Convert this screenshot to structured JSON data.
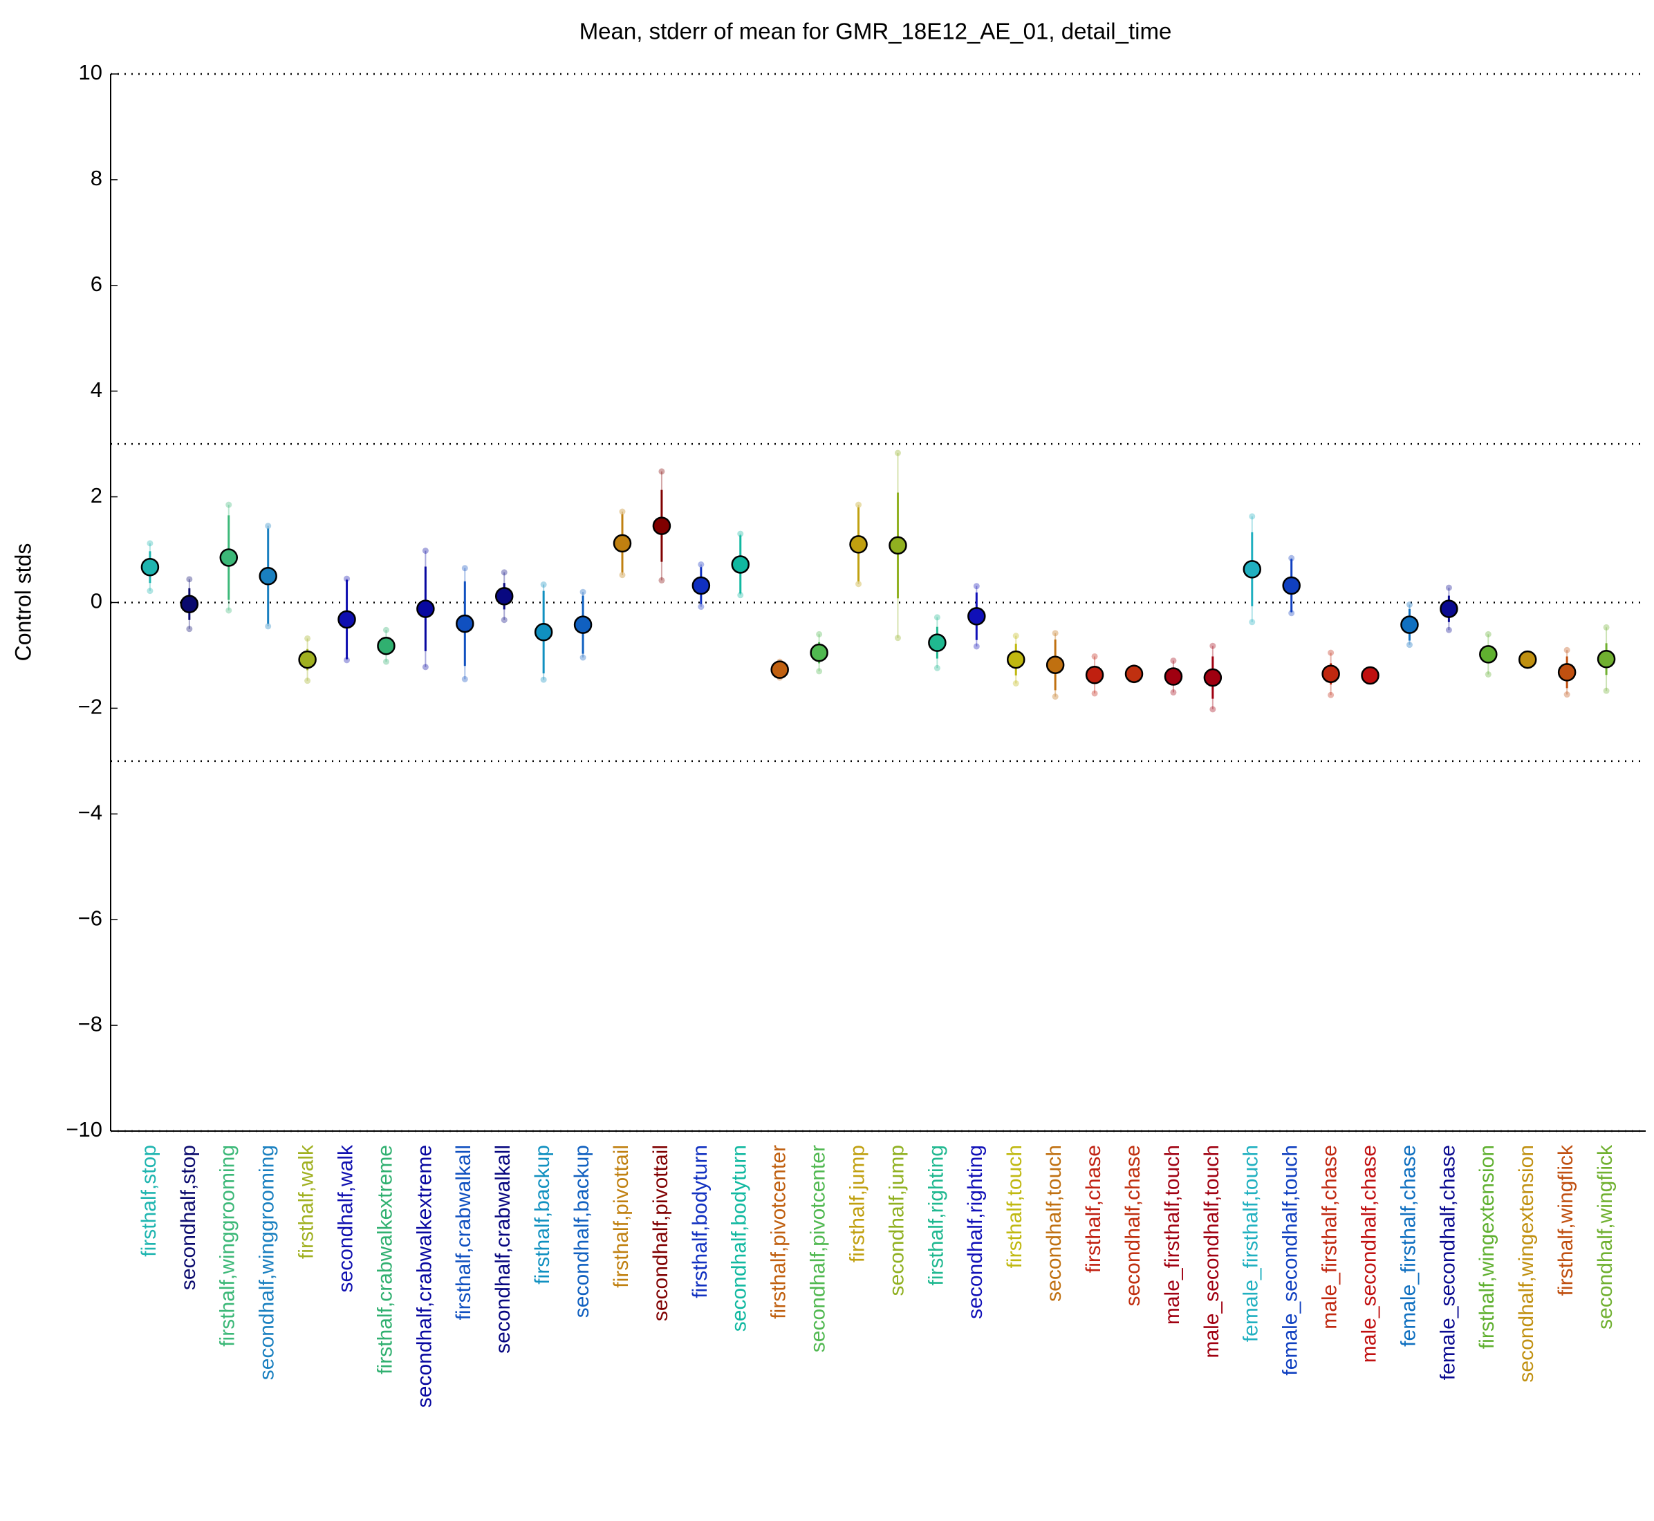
{
  "chart_data": {
    "type": "errorbar",
    "title": "Mean, stderr of mean for GMR_18E12_AE_01, detail_time",
    "y_label": "Control stds",
    "categories": [
      "firsthalf,stop",
      "secondhalf,stop",
      "firsthalf,winggrooming",
      "secondhalf,winggrooming",
      "firsthalf,walk",
      "secondhalf,walk",
      "firsthalf,crabwalkextreme",
      "secondhalf,crabwalkextreme",
      "firsthalf,crabwalkall",
      "secondhalf,crabwalkall",
      "firsthalf,backup",
      "secondhalf,backup",
      "firsthalf,pivottail",
      "secondhalf,pivottail",
      "firsthalf,bodyturn",
      "secondhalf,bodyturn",
      "firsthalf,pivotcenter",
      "secondhalf,pivotcenter",
      "firsthalf,jump",
      "secondhalf,jump",
      "firsthalf,righting",
      "secondhalf,righting",
      "firsthalf,touch",
      "secondhalf,touch",
      "firsthalf,chase",
      "secondhalf,chase",
      "male_firsthalf,touch",
      "male_secondhalf,touch",
      "female_firsthalf,touch",
      "female_secondhalf,touch",
      "male_firsthalf,chase",
      "male_secondhalf,chase",
      "female_firsthalf,chase",
      "female_secondhalf,chase",
      "firsthalf,wingextension",
      "secondhalf,wingextension",
      "firsthalf,wingflick",
      "secondhalf,wingflick"
    ],
    "values": [
      0.67,
      -0.03,
      0.85,
      0.5,
      -1.08,
      -0.32,
      -0.82,
      -0.12,
      -0.4,
      0.12,
      -0.56,
      -0.42,
      1.12,
      1.45,
      0.32,
      0.72,
      -1.27,
      -0.95,
      1.1,
      1.08,
      -0.76,
      -0.26,
      -1.08,
      -1.18,
      -1.37,
      -1.35,
      -1.4,
      -1.42,
      0.63,
      0.32,
      -1.35,
      -1.38,
      -0.42,
      -0.12,
      -0.98,
      -1.08,
      -1.32,
      -1.07
    ],
    "errors": [
      0.3,
      0.3,
      0.8,
      0.9,
      0.2,
      0.75,
      0.15,
      0.8,
      0.8,
      0.25,
      0.78,
      0.55,
      0.55,
      0.68,
      0.35,
      0.55,
      0.08,
      0.2,
      0.7,
      1.0,
      0.3,
      0.45,
      0.3,
      0.48,
      0.15,
      0.08,
      0.15,
      0.4,
      0.7,
      0.5,
      0.2,
      0.05,
      0.3,
      0.25,
      0.15,
      0.05,
      0.3,
      0.3
    ],
    "spread": [
      0.45,
      0.47,
      1.0,
      0.95,
      0.4,
      0.77,
      0.3,
      1.1,
      1.05,
      0.45,
      0.9,
      0.62,
      0.6,
      1.03,
      0.4,
      0.58,
      0.15,
      0.35,
      0.75,
      1.75,
      0.48,
      0.57,
      0.45,
      0.6,
      0.35,
      0.12,
      0.3,
      0.6,
      1.0,
      0.52,
      0.4,
      0.08,
      0.38,
      0.4,
      0.38,
      0.1,
      0.42,
      0.6
    ],
    "colors": [
      "#1fb5b0",
      "#0a0a6e",
      "#3cb878",
      "#1a80c0",
      "#a0b020",
      "#1010b0",
      "#30b070",
      "#0808a0",
      "#1050c0",
      "#080880",
      "#1090c0",
      "#1060c0",
      "#c08010",
      "#800000",
      "#1030c0",
      "#10b8a0",
      "#c06010",
      "#50b850",
      "#c0a010",
      "#90b020",
      "#20b890",
      "#1010b8",
      "#c0b810",
      "#c07010",
      "#c02010",
      "#c03010",
      "#a00010",
      "#a00010",
      "#20b0c0",
      "#1040c0",
      "#c02810",
      "#c01010",
      "#1070c0",
      "#0a0a90",
      "#60b030",
      "#c09010",
      "#c05010",
      "#70b030"
    ],
    "ylim": [
      -10,
      10
    ],
    "yticks": [
      {
        "value": -10,
        "label": "−10"
      },
      {
        "value": -8,
        "label": "−8"
      },
      {
        "value": -6,
        "label": "−6"
      },
      {
        "value": -4,
        "label": "−4"
      },
      {
        "value": -2,
        "label": "−2"
      },
      0,
      2,
      4,
      6,
      8,
      10
    ],
    "reference_lines": [
      10,
      3,
      0,
      -3,
      -10
    ]
  }
}
